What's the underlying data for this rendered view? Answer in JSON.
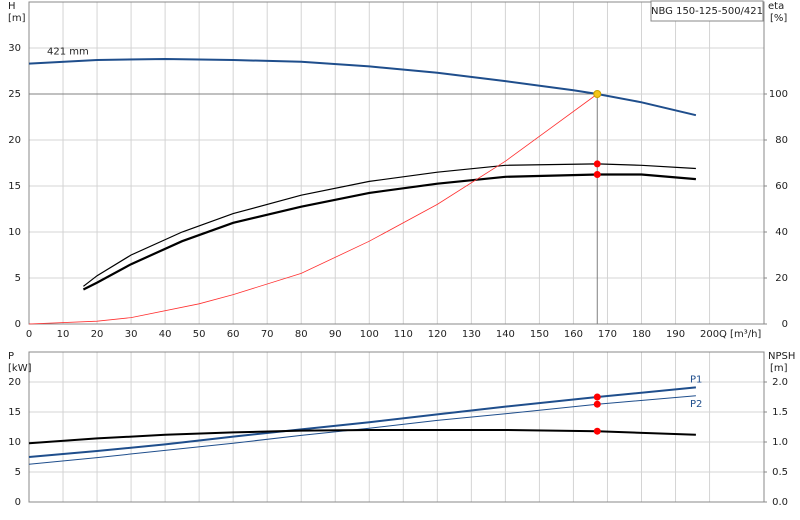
{
  "chart_data": [
    {
      "type": "line",
      "title": "NBG 150-125-500/421",
      "annotation": "421 mm",
      "y_label": "H",
      "y_unit": "[m]",
      "y2_label": "eta",
      "y2_unit": "[%]",
      "x_label": "Q [m³/h]",
      "xlim": [
        0,
        216
      ],
      "xticks": [
        0,
        10,
        20,
        30,
        40,
        50,
        60,
        70,
        80,
        90,
        100,
        110,
        120,
        130,
        140,
        150,
        160,
        170,
        180,
        190,
        200
      ],
      "ylim": [
        0,
        35
      ],
      "yticks": [
        0,
        5,
        10,
        15,
        20,
        25,
        30
      ],
      "y2lim": [
        0,
        140
      ],
      "y2ticks": [
        0,
        20,
        40,
        60,
        80,
        100
      ],
      "grid": true,
      "reference": {
        "x": 167,
        "y": 25,
        "color": "#808080"
      },
      "series": [
        {
          "color": "#1f4e8c",
          "width": 2,
          "x": [
            0,
            20,
            40,
            60,
            80,
            100,
            120,
            140,
            160,
            167,
            180,
            196
          ],
          "values": [
            28.3,
            28.7,
            28.8,
            28.7,
            28.5,
            28.0,
            27.3,
            26.4,
            25.4,
            25.0,
            24.1,
            22.7
          ]
        },
        {
          "color": "#000000",
          "width": 1.2,
          "axis": "y2",
          "x": [
            16,
            20,
            30,
            45,
            60,
            80,
            100,
            120,
            140,
            167,
            180,
            196
          ],
          "values": [
            16.4,
            21,
            30,
            40,
            48,
            56,
            62,
            66,
            69,
            69.6,
            69,
            67.6
          ]
        },
        {
          "color": "#000000",
          "width": 2.2,
          "axis": "y2",
          "x": [
            16,
            20,
            30,
            45,
            60,
            80,
            100,
            120,
            140,
            167,
            180,
            196
          ],
          "values": [
            15,
            18,
            26,
            36,
            44,
            51,
            57,
            61,
            64,
            65,
            65,
            63
          ]
        },
        {
          "color": "#ff3030",
          "width": 0.8,
          "x": [
            0,
            20,
            30,
            50,
            60,
            80,
            100,
            120,
            140,
            167
          ],
          "values": [
            0,
            0.3,
            0.7,
            2.2,
            3.2,
            5.5,
            9.0,
            13.0,
            17.7,
            25.0
          ]
        }
      ],
      "markers": [
        {
          "x": 167,
          "y": 25,
          "color": "#f5c518"
        },
        {
          "x": 167,
          "y": 69.6,
          "axis": "y2",
          "color": "#ff0000"
        },
        {
          "x": 167,
          "y": 65,
          "axis": "y2",
          "color": "#ff0000"
        }
      ]
    },
    {
      "type": "line",
      "y_label": "P",
      "y_unit": "[kW]",
      "y2_label": "NPSH",
      "y2_unit": "[m]",
      "xlim": [
        0,
        216
      ],
      "xticks": [
        0,
        10,
        20,
        30,
        40,
        50,
        60,
        70,
        80,
        90,
        100,
        110,
        120,
        130,
        140,
        150,
        160,
        170,
        180,
        190,
        200
      ],
      "ylim": [
        0,
        25
      ],
      "yticks": [
        0,
        5,
        10,
        15,
        20
      ],
      "y2lim": [
        0,
        2.5
      ],
      "y2ticks": [
        {
          "value": 0,
          "label": "0.0"
        },
        0.5,
        {
          "value": 1,
          "label": "1.0"
        },
        1.5,
        {
          "value": 2,
          "label": "2.0"
        }
      ],
      "grid": true,
      "series": [
        {
          "name": "P1",
          "color": "#1f4e8c",
          "width": 2,
          "x": [
            0,
            20,
            40,
            60,
            80,
            100,
            120,
            140,
            167,
            196
          ],
          "values": [
            7.5,
            8.5,
            9.6,
            10.9,
            12.1,
            13.3,
            14.6,
            15.9,
            17.5,
            19.1
          ]
        },
        {
          "name": "P2",
          "color": "#1f4e8c",
          "width": 1,
          "x": [
            0,
            20,
            40,
            60,
            80,
            100,
            120,
            140,
            167,
            196
          ],
          "values": [
            6.3,
            7.4,
            8.6,
            9.8,
            11.1,
            12.3,
            13.6,
            14.7,
            16.3,
            17.7
          ]
        },
        {
          "color": "#000000",
          "width": 2,
          "axis": "y2",
          "x": [
            0,
            20,
            40,
            60,
            80,
            100,
            120,
            140,
            167,
            196
          ],
          "values": [
            0.98,
            1.06,
            1.12,
            1.16,
            1.19,
            1.2,
            1.2,
            1.2,
            1.18,
            1.12
          ]
        }
      ],
      "markers": [
        {
          "x": 167,
          "y": 17.5,
          "color": "#ff0000"
        },
        {
          "x": 167,
          "y": 16.3,
          "color": "#ff0000"
        },
        {
          "x": 167,
          "y": 1.18,
          "axis": "y2",
          "color": "#ff0000"
        }
      ]
    }
  ]
}
